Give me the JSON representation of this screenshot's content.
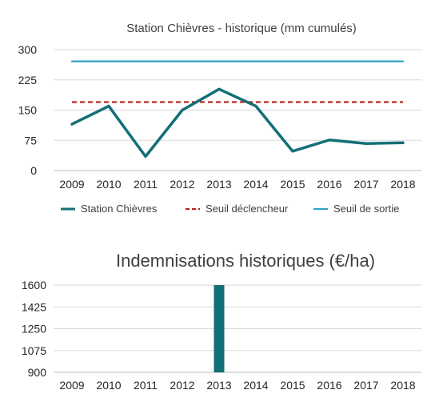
{
  "chart_data": [
    {
      "type": "line",
      "title": "Station Chièvres - historique (mm cumulés)",
      "xlabel": "",
      "ylabel": "",
      "categories": [
        "2009",
        "2010",
        "2011",
        "2012",
        "2013",
        "2014",
        "2015",
        "2016",
        "2017",
        "2018"
      ],
      "ylim": [
        0,
        300
      ],
      "yticks": [
        "300",
        "225",
        "150",
        "75",
        "0"
      ],
      "grid": true,
      "legend": "bottom",
      "series": [
        {
          "name": "Station Chièvres",
          "values": [
            115,
            160,
            35,
            150,
            202,
            160,
            48,
            76,
            67,
            69
          ],
          "color": "#136f77",
          "style": "solid"
        },
        {
          "name": "Seuil déclencheur",
          "values": [
            170,
            170,
            170,
            170,
            170,
            170,
            170,
            170,
            170,
            170
          ],
          "color": "#b7201b",
          "style": "dashed"
        },
        {
          "name": "Seuil de sortie",
          "values": [
            271,
            271,
            271,
            271,
            271,
            271,
            271,
            271,
            271,
            271
          ],
          "color": "#2fa3c4",
          "style": "solid"
        }
      ]
    },
    {
      "type": "bar",
      "title": "Indemnisations historiques (€/ha)",
      "xlabel": "",
      "ylabel": "",
      "categories": [
        "2009",
        "2010",
        "2011",
        "2012",
        "2013",
        "2014",
        "2015",
        "2016",
        "2017",
        "2018"
      ],
      "values": [
        null,
        null,
        null,
        null,
        1600,
        null,
        null,
        null,
        null,
        null
      ],
      "ylim": [
        900,
        1600
      ],
      "yticks": [
        "1600",
        "1425",
        "1250",
        "1075",
        "900"
      ],
      "grid": true,
      "color": "#136f77"
    }
  ]
}
